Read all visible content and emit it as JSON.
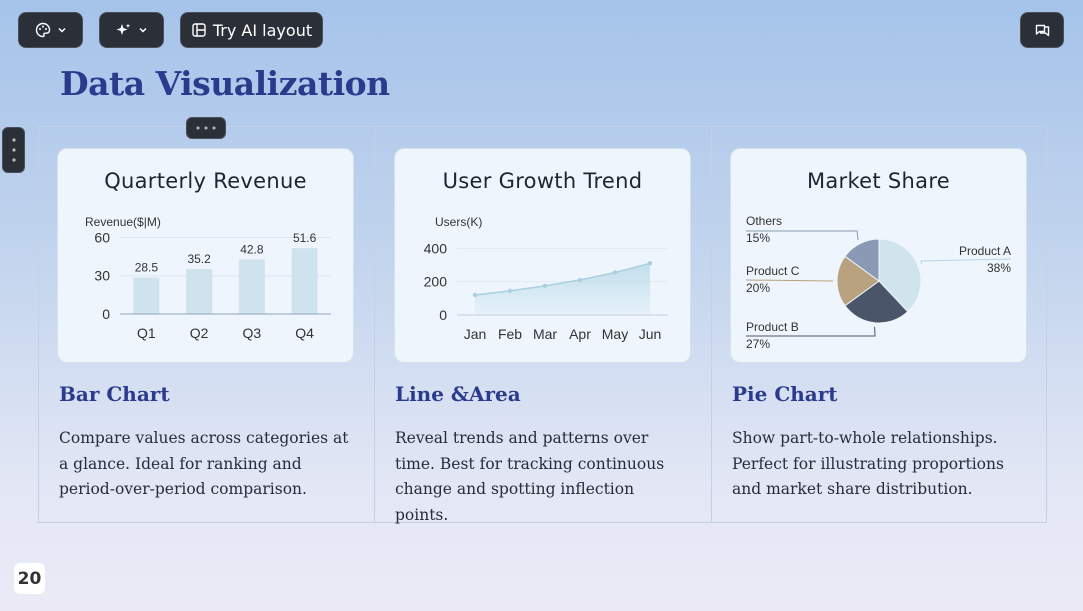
{
  "toolbar": {
    "theme_icon": "palette-icon",
    "ai_icon": "sparkles-icon",
    "ai_layout_label": "Try AI layout",
    "comment_icon": "comment-icon"
  },
  "slide": {
    "title": "Data Visualization",
    "page_number": "20"
  },
  "sections": [
    {
      "title": "Bar Chart",
      "description": "Compare values across categories at a glance. Ideal for ranking and period-over-period comparison."
    },
    {
      "title": "Line &Area",
      "description": "Reveal trends and patterns over time. Best for tracking continuous change and spotting inflection points."
    },
    {
      "title": "Pie Chart",
      "description": "Show part-to-whole relationships. Perfect for illustrating proportions and market share distribution."
    }
  ],
  "chart_data": [
    {
      "type": "bar",
      "title": "Quarterly Revenue",
      "ylabel": "Revenue($|M)",
      "categories": [
        "Q1",
        "Q2",
        "Q3",
        "Q4"
      ],
      "values": [
        28.5,
        35.2,
        42.8,
        51.6
      ],
      "yticks": [
        0,
        30,
        60
      ],
      "ylim": [
        0,
        65
      ],
      "color": "#cfe3ee"
    },
    {
      "type": "area",
      "title": "User Growth Trend",
      "ylabel": "Users(K)",
      "categories": [
        "Jan",
        "Feb",
        "Mar",
        "Apr",
        "May",
        "Jun"
      ],
      "values": [
        120,
        145,
        175,
        210,
        255,
        310
      ],
      "yticks": [
        0,
        200,
        400
      ],
      "ylim": [
        0,
        420
      ],
      "color": "#b9dbe8"
    },
    {
      "type": "pie",
      "title": "Market Share",
      "slices": [
        {
          "label": "Product A",
          "value": 38,
          "pct": "38%",
          "color": "#d0e4ee"
        },
        {
          "label": "Product B",
          "value": 27,
          "pct": "27%",
          "color": "#4b5569"
        },
        {
          "label": "Product C",
          "value": 20,
          "pct": "20%",
          "color": "#b8a27f"
        },
        {
          "label": "Others",
          "value": 15,
          "pct": "15%",
          "color": "#8a9ab4"
        }
      ]
    }
  ]
}
